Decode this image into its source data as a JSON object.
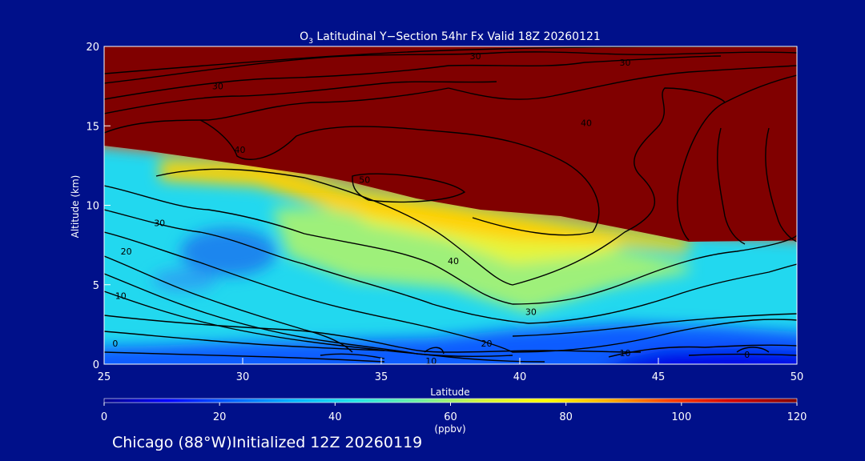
{
  "chart_data": {
    "type": "heatmap",
    "title": {
      "prefix": "O",
      "sub": "3",
      "suffix": " Latitudinal Y−Section 54hr  Fx Valid 18Z 20260121"
    },
    "xlabel": "Latitude",
    "ylabel": "Altitude (km)",
    "xlim": [
      25,
      50
    ],
    "ylim": [
      0,
      20
    ],
    "x_ticks": [
      25,
      30,
      35,
      40,
      45,
      50
    ],
    "y_ticks": [
      0,
      5,
      10,
      15,
      20
    ],
    "colorbar": {
      "range": [
        0,
        120
      ],
      "ticks": [
        0,
        20,
        40,
        60,
        80,
        100,
        120
      ],
      "unit": "(ppbv)",
      "colors": [
        "#00008b",
        "#0000ff",
        "#0060ff",
        "#00b4ff",
        "#22e6e6",
        "#6ff0a0",
        "#d4f53a",
        "#ffff00",
        "#ffb000",
        "#ff3c00",
        "#d00000",
        "#800000"
      ]
    },
    "contour_levels": [
      0,
      10,
      20,
      30,
      40,
      50
    ],
    "contour_labels": [
      {
        "text": "0",
        "x": 25.4,
        "y": 1.3
      },
      {
        "text": "10",
        "x": 25.6,
        "y": 4.3
      },
      {
        "text": "20",
        "x": 25.8,
        "y": 7.1
      },
      {
        "text": "30",
        "x": 27.0,
        "y": 8.9
      },
      {
        "text": "40",
        "x": 29.9,
        "y": 13.5
      },
      {
        "text": "50",
        "x": 34.4,
        "y": 11.6
      },
      {
        "text": "30",
        "x": 29.1,
        "y": 17.5
      },
      {
        "text": "30",
        "x": 38.4,
        "y": 19.4
      },
      {
        "text": "30",
        "x": 43.8,
        "y": 19.0
      },
      {
        "text": "40",
        "x": 42.4,
        "y": 15.2
      },
      {
        "text": "40",
        "x": 37.6,
        "y": 6.5
      },
      {
        "text": "30",
        "x": 40.4,
        "y": 3.3
      },
      {
        "text": "20",
        "x": 38.8,
        "y": 1.3
      },
      {
        "text": "10",
        "x": 36.8,
        "y": 0.2
      },
      {
        "text": "10",
        "x": 43.8,
        "y": 0.7
      },
      {
        "text": "0",
        "x": 48.2,
        "y": 0.6
      }
    ]
  },
  "footer": "Chicago (88°W)Initialized 12Z 20260119"
}
